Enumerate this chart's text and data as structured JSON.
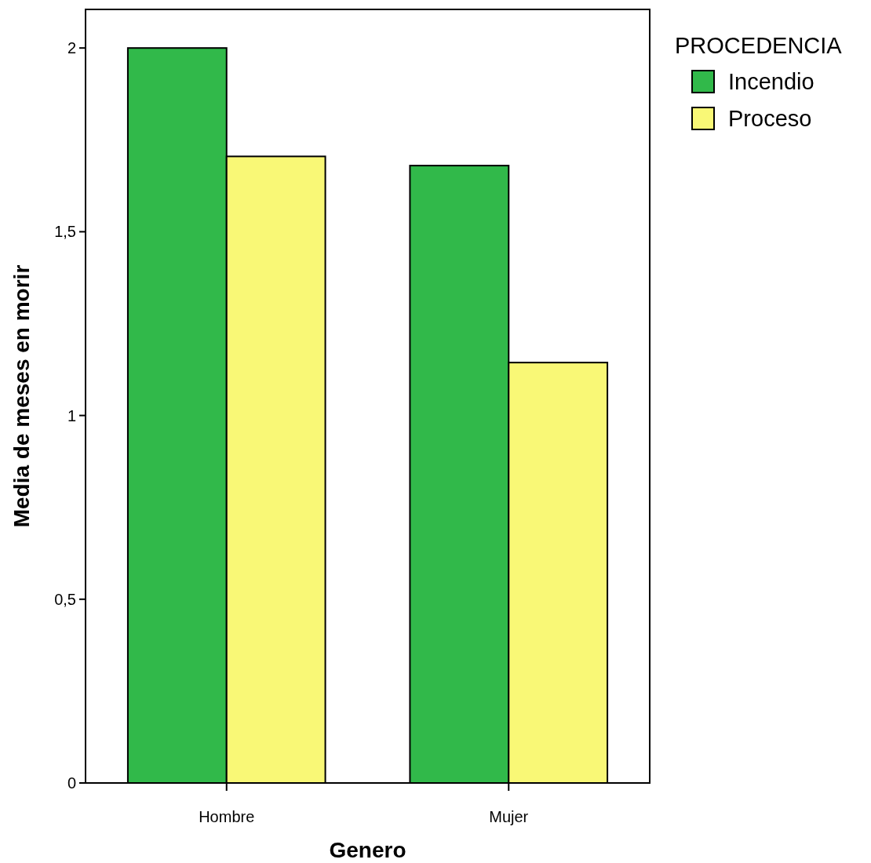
{
  "chart_data": {
    "type": "bar",
    "xlabel": "Genero",
    "ylabel": "Media de meses en morir",
    "legend_title": "PROCEDENCIA",
    "legend": "top right",
    "categories": [
      "Hombre",
      "Mujer"
    ],
    "series": [
      {
        "name": "Incendio",
        "color": "#31b94a",
        "values": [
          2.0,
          1.68
        ]
      },
      {
        "name": "Proceso",
        "color": "#f9f876",
        "values": [
          1.705,
          1.144
        ]
      }
    ],
    "ylim": [
      0,
      2.105
    ],
    "yticks": [
      0,
      {
        "value": 0.5,
        "label": "0,5"
      },
      1,
      {
        "value": 1.5,
        "label": "1,5"
      },
      2
    ],
    "grid": false
  }
}
